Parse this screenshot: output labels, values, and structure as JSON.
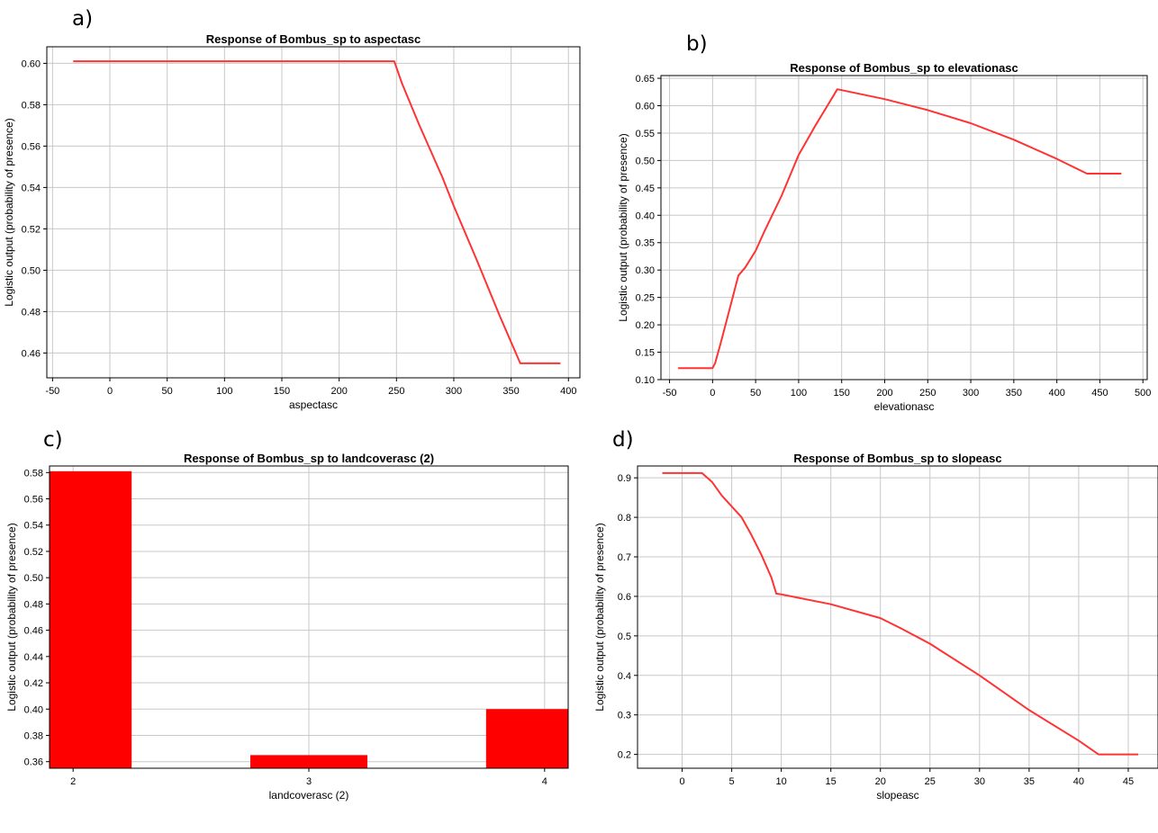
{
  "panel_letters": [
    "a)",
    "b)",
    "c)",
    "d)"
  ],
  "chart_data": [
    {
      "type": "line",
      "title": "Response of Bombus_sp to aspectasc",
      "xlabel": "aspectasc",
      "ylabel": "Logistic output (probability of presence)",
      "xlim": [
        -55,
        410
      ],
      "ylim": [
        0.448,
        0.608
      ],
      "xticks": [
        -50,
        0,
        50,
        100,
        150,
        200,
        250,
        300,
        350,
        400
      ],
      "yticks": [
        0.46,
        0.48,
        0.5,
        0.52,
        0.54,
        0.56,
        0.58,
        0.6
      ],
      "tick_decimals": 2,
      "grid": true,
      "color": "#ff3333",
      "series": [
        {
          "x": [
            -32,
            248,
            255,
            270,
            290,
            300,
            320,
            340,
            358,
            393
          ],
          "y": [
            0.601,
            0.601,
            0.59,
            0.57,
            0.545,
            0.531,
            0.505,
            0.478,
            0.455,
            0.455
          ]
        }
      ]
    },
    {
      "type": "line",
      "title": "Response of Bombus_sp to elevationasc",
      "xlabel": "elevationasc",
      "ylabel": "Logistic output (probability of presence)",
      "xlim": [
        -60,
        505
      ],
      "ylim": [
        0.1,
        0.655
      ],
      "xticks": [
        -50,
        0,
        50,
        100,
        150,
        200,
        250,
        300,
        350,
        400,
        450,
        500
      ],
      "yticks": [
        0.1,
        0.15,
        0.2,
        0.25,
        0.3,
        0.35,
        0.4,
        0.45,
        0.5,
        0.55,
        0.6,
        0.65
      ],
      "tick_decimals": 2,
      "grid": true,
      "color": "#ff3333",
      "series": [
        {
          "x": [
            -40,
            0,
            3,
            10,
            20,
            30,
            38,
            50,
            60,
            80,
            100,
            120,
            145,
            200,
            250,
            300,
            350,
            400,
            435,
            475
          ],
          "y": [
            0.121,
            0.121,
            0.13,
            0.17,
            0.23,
            0.29,
            0.305,
            0.335,
            0.37,
            0.435,
            0.51,
            0.565,
            0.63,
            0.612,
            0.592,
            0.568,
            0.538,
            0.503,
            0.476,
            0.476
          ]
        }
      ]
    },
    {
      "type": "bar",
      "title": "Response of Bombus_sp to landcoverasc (2)",
      "xlabel": "landcoverasc (2)",
      "ylabel": "Logistic output (probability of presence)",
      "categories": [
        "2",
        "3",
        "4"
      ],
      "values": [
        0.581,
        0.365,
        0.4
      ],
      "xlim": [
        1.9,
        4.1
      ],
      "ylim": [
        0.355,
        0.585
      ],
      "yticks": [
        0.36,
        0.38,
        0.4,
        0.42,
        0.44,
        0.46,
        0.48,
        0.5,
        0.52,
        0.54,
        0.56,
        0.58
      ],
      "tick_decimals": 2,
      "grid": true,
      "color": "#ff0000"
    },
    {
      "type": "line",
      "title": "Response of Bombus_sp to slopeasc",
      "xlabel": "slopeasc",
      "ylabel": "Logistic output (probability of presence)",
      "xlim": [
        -4.5,
        48
      ],
      "ylim": [
        0.165,
        0.93
      ],
      "xticks": [
        0,
        5,
        10,
        15,
        20,
        25,
        30,
        35,
        40,
        45
      ],
      "yticks": [
        0.2,
        0.3,
        0.4,
        0.5,
        0.6,
        0.7,
        0.8,
        0.9
      ],
      "tick_decimals": 1,
      "grid": true,
      "color": "#ff3333",
      "series": [
        {
          "x": [
            -2,
            2,
            3,
            4,
            6,
            7,
            8,
            9,
            9.5,
            10,
            15,
            20,
            22,
            25,
            30,
            35,
            40,
            42,
            46
          ],
          "y": [
            0.912,
            0.912,
            0.89,
            0.855,
            0.8,
            0.755,
            0.705,
            0.648,
            0.607,
            0.605,
            0.58,
            0.545,
            0.52,
            0.48,
            0.4,
            0.312,
            0.235,
            0.2,
            0.2
          ]
        }
      ]
    }
  ]
}
